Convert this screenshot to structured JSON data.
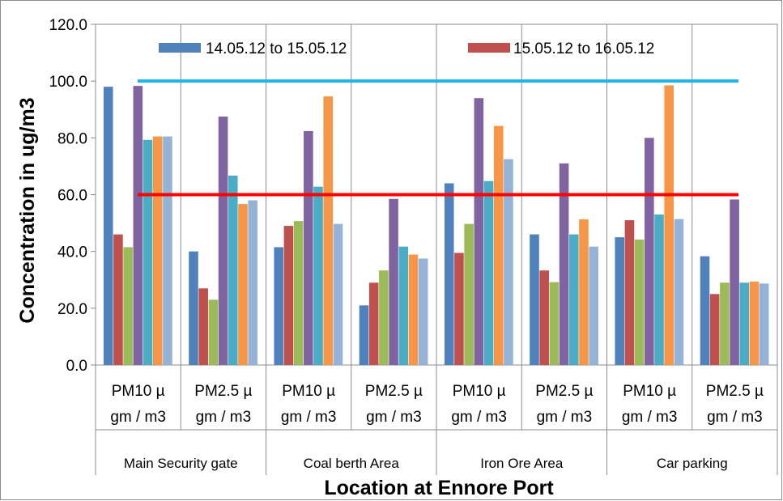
{
  "chart_data": {
    "type": "bar",
    "title": "",
    "xlabel": "Location at Ennore Port",
    "ylabel": "Concentration in ug/m3",
    "ylim": [
      0,
      120
    ],
    "yticks": [
      "0.0",
      "20.0",
      "40.0",
      "60.0",
      "80.0",
      "100.0",
      "120.0"
    ],
    "grid": "horizontal off, vertical category separators",
    "legend_placement": "top, inside plot",
    "categories": [
      {
        "line1": "PM10  µ",
        "line2": "gm / m3",
        "group": "Main Security gate"
      },
      {
        "line1": "PM2.5  µ",
        "line2": "gm / m3",
        "group": "Main Security gate"
      },
      {
        "line1": "PM10  µ",
        "line2": "gm / m3",
        "group": "Coal berth Area"
      },
      {
        "line1": "PM2.5  µ",
        "line2": "gm / m3",
        "group": "Coal berth Area"
      },
      {
        "line1": "PM10  µ",
        "line2": "gm / m3",
        "group": "Iron Ore Area"
      },
      {
        "line1": "PM2.5  µ",
        "line2": "gm / m3",
        "group": "Iron Ore Area"
      },
      {
        "line1": "PM10  µ",
        "line2": "gm / m3",
        "group": "Car parking"
      },
      {
        "line1": "PM2.5  µ",
        "line2": "gm / m3",
        "group": "Car parking"
      }
    ],
    "groups": [
      "Main Security gate",
      "Coal berth Area",
      "Iron Ore Area",
      "Car parking"
    ],
    "series": [
      {
        "name": "14.05.12 to 15.05.12",
        "color": "#4f81bd",
        "values": [
          98.0,
          40.0,
          41.5,
          21.0,
          64.0,
          46.0,
          45.0,
          38.3
        ]
      },
      {
        "name": "15.05.12 to 16.05.12",
        "color": "#c0504d",
        "values": [
          46.0,
          27.0,
          49.0,
          29.0,
          39.5,
          33.3,
          51.0,
          25.0
        ]
      },
      {
        "color": "#9bbb59",
        "values": [
          41.5,
          23.0,
          50.7,
          33.3,
          49.7,
          29.2,
          44.2,
          29.0
        ]
      },
      {
        "color": "#8064a2",
        "values": [
          98.3,
          87.5,
          82.4,
          58.5,
          94.0,
          71.0,
          80.0,
          58.3
        ]
      },
      {
        "color": "#4bacc6",
        "values": [
          79.3,
          66.7,
          62.8,
          41.7,
          64.8,
          46.0,
          53.0,
          29.0
        ]
      },
      {
        "color": "#f79646",
        "values": [
          80.5,
          56.7,
          94.6,
          38.9,
          84.2,
          51.3,
          98.5,
          29.4
        ]
      },
      {
        "color": "#95b3d7",
        "values": [
          80.5,
          58.0,
          49.7,
          37.5,
          72.5,
          41.7,
          51.4,
          28.7
        ]
      }
    ],
    "reference_lines": [
      {
        "value": 100,
        "color": "#1fb4e8"
      },
      {
        "value": 60,
        "color": "#ff0000"
      }
    ]
  }
}
